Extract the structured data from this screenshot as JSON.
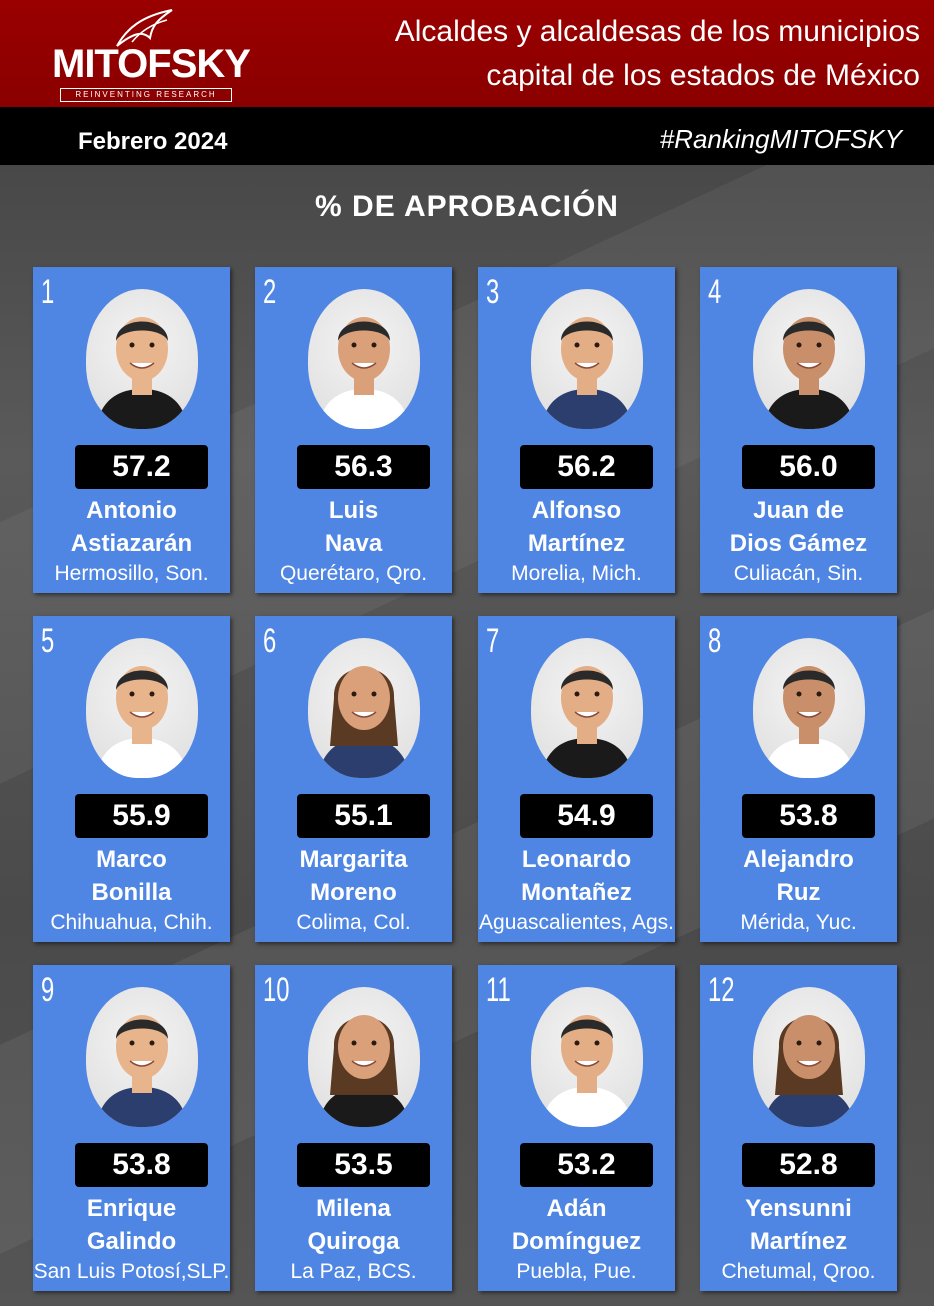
{
  "header": {
    "logo_text": "MITOFSKY",
    "logo_tagline": "REINVENTING RESEARCH",
    "title_line1": "Alcaldes y alcaldesas de los municipios",
    "title_line2": "capital de los estados de México"
  },
  "subbar": {
    "date": "Febrero 2024",
    "hashtag": "#RankingMITOFSKY"
  },
  "section_title": "% DE APROBACIÓN",
  "colors": {
    "header_red": "#8a0000",
    "card_blue": "#4f86e4",
    "score_bg": "#000000",
    "background": "#4a4a4a"
  },
  "cards": [
    {
      "rank": "1",
      "score": "57.2",
      "name1": "Antonio",
      "name2": "Astiazarán",
      "city": "Hermosillo, Son.",
      "photo_icon": "portrait-icon"
    },
    {
      "rank": "2",
      "score": "56.3",
      "name1": "Luis",
      "name2": "Nava",
      "city": "Querétaro, Qro.",
      "photo_icon": "portrait-icon"
    },
    {
      "rank": "3",
      "score": "56.2",
      "name1": "Alfonso",
      "name2": "Martínez",
      "city": "Morelia, Mich.",
      "photo_icon": "portrait-icon"
    },
    {
      "rank": "4",
      "score": "56.0",
      "name1": "Juan de",
      "name2": "Dios Gámez",
      "city": "Culiacán, Sin.",
      "photo_icon": "portrait-icon"
    },
    {
      "rank": "5",
      "score": "55.9",
      "name1": "Marco",
      "name2": "Bonilla",
      "city": "Chihuahua, Chih.",
      "photo_icon": "portrait-icon"
    },
    {
      "rank": "6",
      "score": "55.1",
      "name1": "Margarita",
      "name2": "Moreno",
      "city": "Colima, Col.",
      "photo_icon": "portrait-icon"
    },
    {
      "rank": "7",
      "score": "54.9",
      "name1": "Leonardo",
      "name2": "Montañez",
      "city": "Aguascalientes, Ags.",
      "photo_icon": "portrait-icon"
    },
    {
      "rank": "8",
      "score": "53.8",
      "name1": "Alejandro",
      "name2": "Ruz",
      "city": "Mérida, Yuc.",
      "photo_icon": "portrait-icon"
    },
    {
      "rank": "9",
      "score": "53.8",
      "name1": "Enrique",
      "name2": "Galindo",
      "city": "San Luis Potosí,SLP.",
      "photo_icon": "portrait-icon"
    },
    {
      "rank": "10",
      "score": "53.5",
      "name1": "Milena",
      "name2": "Quiroga",
      "city": "La Paz, BCS.",
      "photo_icon": "portrait-icon"
    },
    {
      "rank": "11",
      "score": "53.2",
      "name1": "Adán",
      "name2": "Domínguez",
      "city": "Puebla, Pue.",
      "photo_icon": "portrait-icon"
    },
    {
      "rank": "12",
      "score": "52.8",
      "name1": "Yensunni",
      "name2": "Martínez",
      "city": "Chetumal, Qroo.",
      "photo_icon": "portrait-icon"
    }
  ]
}
